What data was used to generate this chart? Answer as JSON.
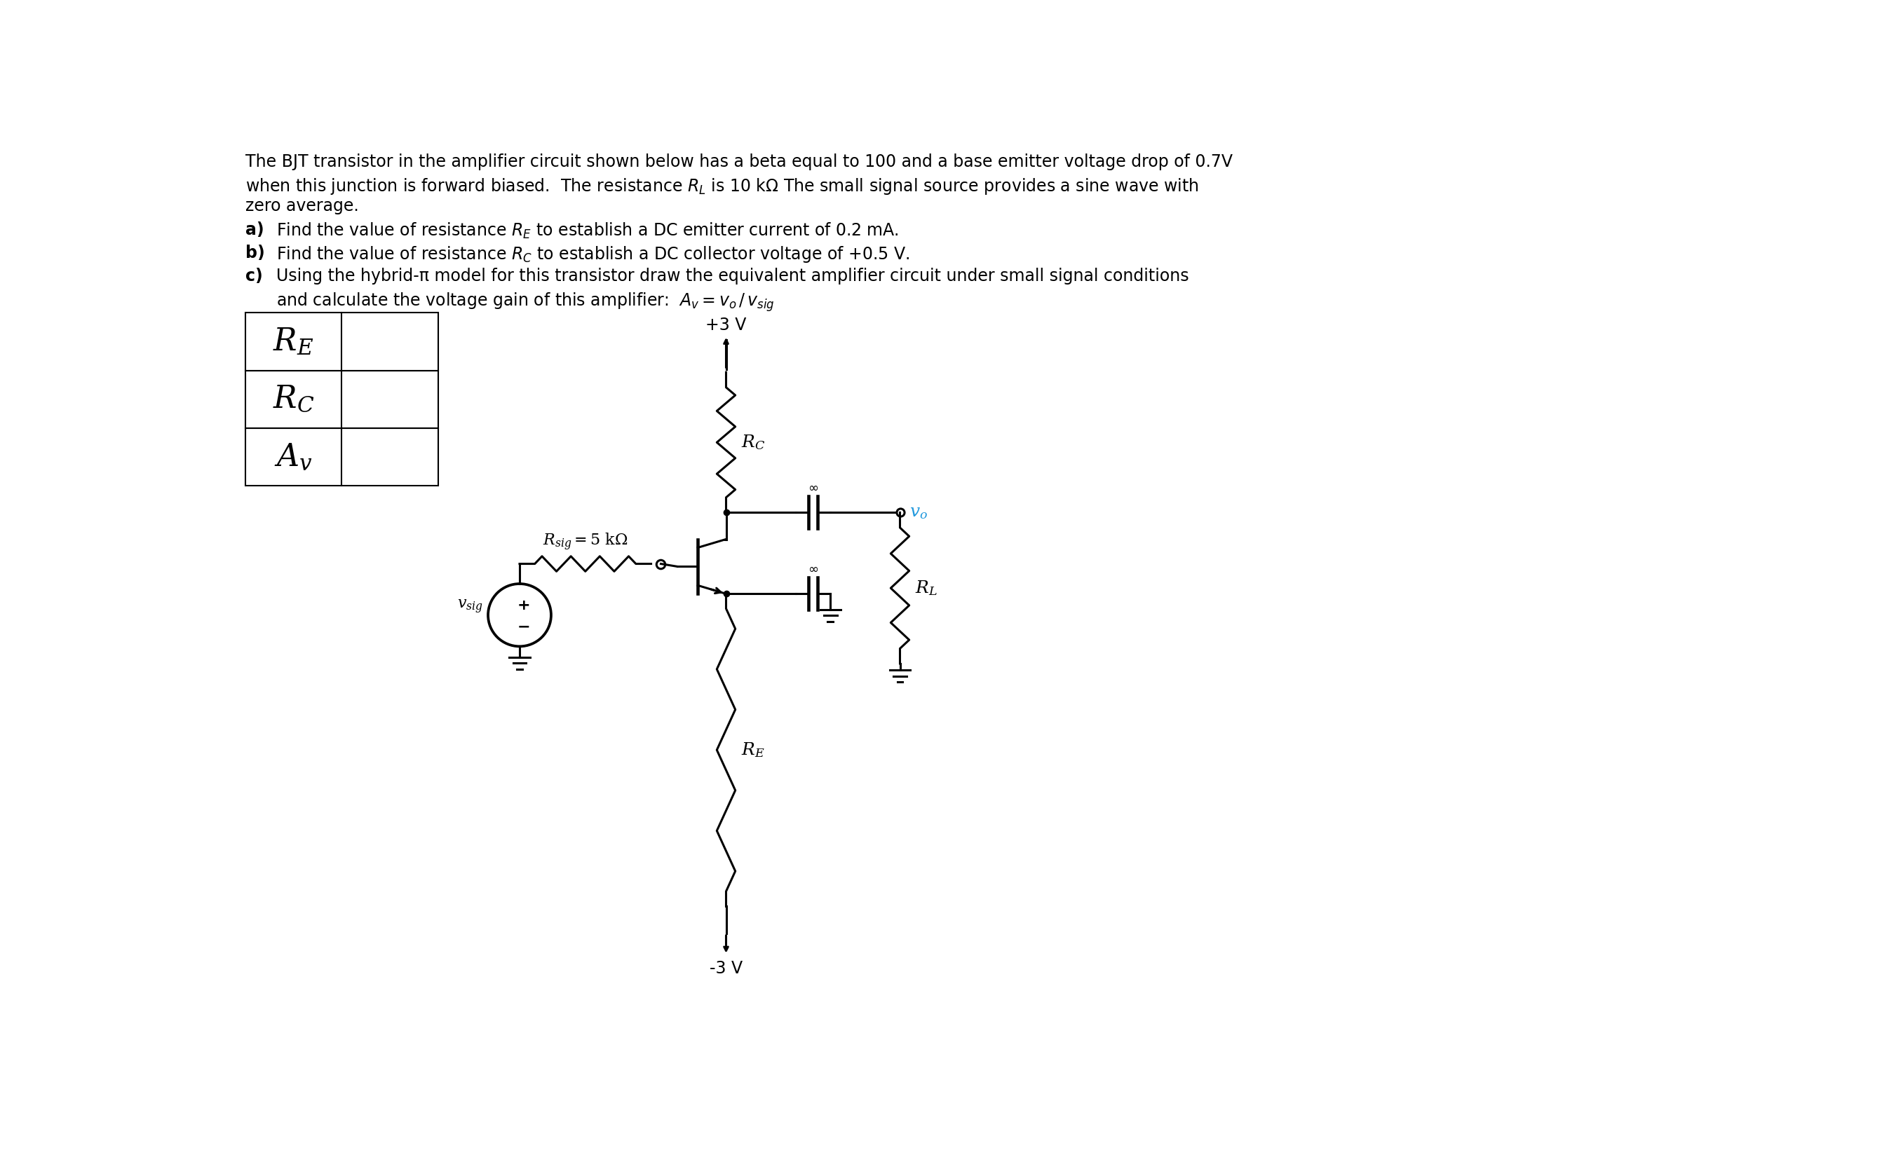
{
  "line1": "The BJT transistor in the amplifier circuit shown below has a beta equal to 100 and a base emitter voltage drop of 0.7V",
  "line2": "when this junction is forward biased.  The resistance $R_L$ is 10 kΩ The small signal source provides a sine wave with",
  "line3": "zero average.",
  "item_a": "Find the value of resistance $R_E$ to establish a DC emitter current of 0.2 mA.",
  "item_b": "Find the value of resistance $R_C$ to establish a DC collector voltage of +0.5 V.",
  "item_c": "Using the hybrid-π model for this transistor draw the equivalent amplifier circuit under small signal conditions",
  "item_c2": "and calculate the voltage gain of this amplifier:  $A_v = v_o\\,/\\,v_{sig}$",
  "table_labels": [
    "$R_E$",
    "$R_C$",
    "$A_v$"
  ],
  "bg_color": "#ffffff",
  "text_color": "#000000",
  "vo_color": "#2299dd",
  "font_size_main": 17,
  "font_size_table": 32
}
